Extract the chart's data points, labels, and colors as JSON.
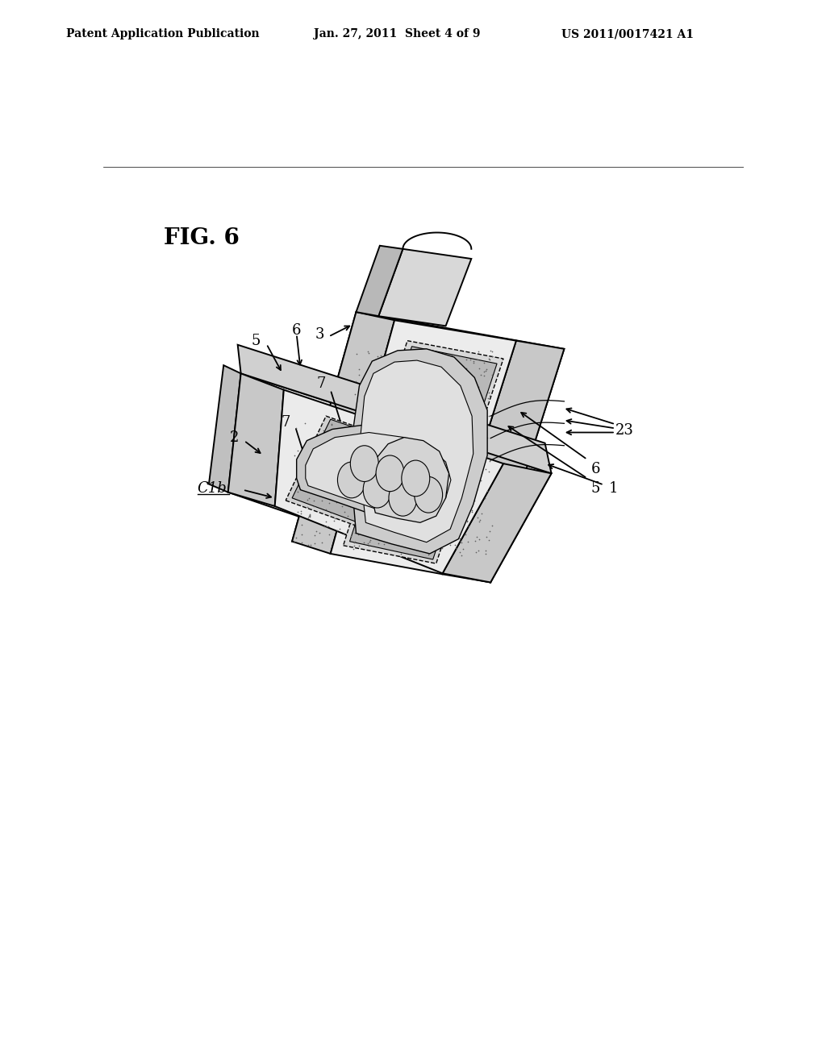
{
  "background_color": "#ffffff",
  "header_left": "Patent Application Publication",
  "header_center": "Jan. 27, 2011  Sheet 4 of 9",
  "header_right": "US 2011/0017421 A1",
  "figure_label": "FIG. 6",
  "text_color": "#000000",
  "line_color": "#000000",
  "dpi": 100,
  "figsize": [
    10.24,
    13.2
  ]
}
